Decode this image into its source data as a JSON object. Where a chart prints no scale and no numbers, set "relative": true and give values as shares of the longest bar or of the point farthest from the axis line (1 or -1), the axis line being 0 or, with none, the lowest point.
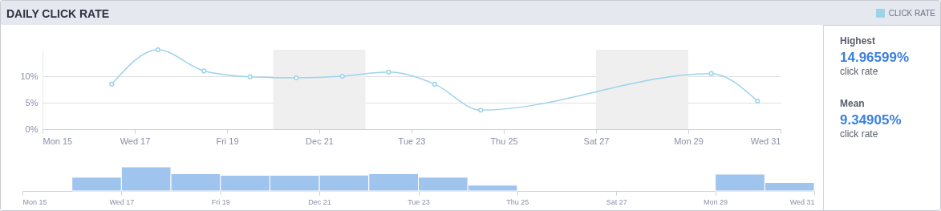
{
  "chart_data": [
    {
      "type": "line",
      "title": "DAILY CLICK RATE",
      "legend": "top right",
      "marker": "circle",
      "grid": "y",
      "x": [
        "--12-16T12:00",
        "--12-17T12:00",
        "--12-18T12:00",
        "--12-19T12:00",
        "--12-20T12:00",
        "--12-21T12:00",
        "--12-22T12:00",
        "--12-23T12:00",
        "--12-24T12:00",
        "--12-29T12:00",
        "--12-30T12:00"
      ],
      "series": [
        {
          "name": "CLICK RATE",
          "color": "#9dd3ea",
          "values": [
            8.5,
            15.0,
            11.0,
            9.9,
            9.7,
            10.0,
            10.8,
            8.5,
            3.6,
            10.5,
            5.3
          ]
        }
      ],
      "xlim": [
        "--12-15",
        "--12-31"
      ],
      "xticks": [
        {
          "value": "--12-15",
          "label": "Mon 15"
        },
        {
          "value": "--12-17",
          "label": "Wed 17"
        },
        {
          "value": "--12-19",
          "label": "Fri 19"
        },
        {
          "value": "--12-21",
          "label": "Dec 21"
        },
        {
          "value": "--12-23",
          "label": "Tue 23"
        },
        {
          "value": "--12-25",
          "label": "Thu 25"
        },
        {
          "value": "--12-27",
          "label": "Sat 27"
        },
        {
          "value": "--12-29",
          "label": "Mon 29"
        },
        {
          "value": "--12-31",
          "label": "Wed 31"
        }
      ],
      "ylim": [
        0,
        15
      ],
      "yticks": [
        {
          "value": 0,
          "label": "0%"
        },
        {
          "value": 5,
          "label": "5%"
        },
        {
          "value": 10,
          "label": "10%"
        }
      ],
      "bands": [
        {
          "axis": "x",
          "from": "--12-20",
          "to": "--12-22",
          "color": "#efefef"
        },
        {
          "axis": "x",
          "from": "--12-27",
          "to": "--12-29",
          "color": "#efefef"
        }
      ]
    },
    {
      "type": "bar",
      "relative": true,
      "color": "#9fc4ee",
      "x": [
        "--12-16T12:00",
        "--12-17T12:00",
        "--12-18T12:00",
        "--12-19T12:00",
        "--12-20T12:00",
        "--12-21T12:00",
        "--12-22T12:00",
        "--12-23T12:00",
        "--12-24T12:00",
        "--12-29T12:00",
        "--12-30T12:00"
      ],
      "values": [
        0.57,
        1,
        0.72,
        0.65,
        0.65,
        0.66,
        0.72,
        0.57,
        0.24,
        0.7,
        0.35
      ],
      "xlim": [
        "--12-15",
        "--12-31"
      ],
      "xticks": [
        {
          "value": "--12-15",
          "label": "Mon 15"
        },
        {
          "value": "--12-17",
          "label": "Wed 17"
        },
        {
          "value": "--12-19",
          "label": "Fri 19"
        },
        {
          "value": "--12-21",
          "label": "Dec 21"
        },
        {
          "value": "--12-23",
          "label": "Tue 23"
        },
        {
          "value": "--12-25",
          "label": "Thu 25"
        },
        {
          "value": "--12-27",
          "label": "Sat 27"
        },
        {
          "value": "--12-29",
          "label": "Mon 29"
        },
        {
          "value": "--12-31",
          "label": "Wed 31"
        }
      ]
    },
    {
      "type": "other",
      "annotations": [
        "Highest",
        "14.96599%",
        "click rate",
        "Mean",
        "9.34905%",
        "click rate"
      ]
    }
  ]
}
